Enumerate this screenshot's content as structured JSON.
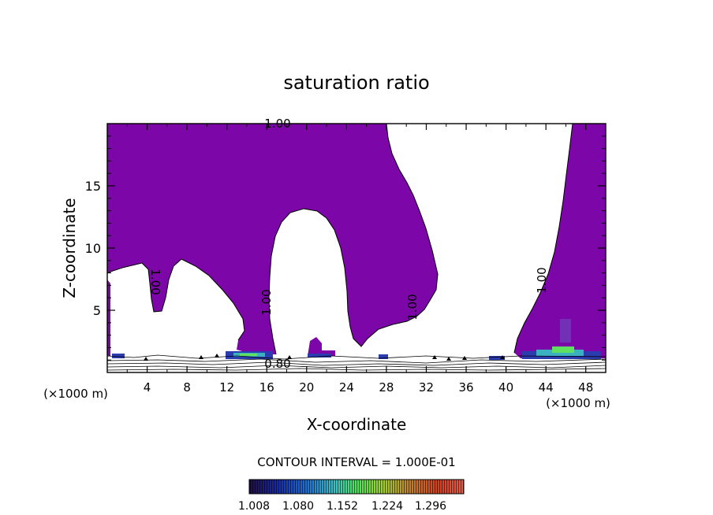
{
  "chart_data": {
    "type": "contour",
    "title": "saturation ratio",
    "xlabel": "X-coordinate",
    "ylabel": "Z-coordinate",
    "x_unit": "(×1000 m)",
    "xlim": [
      0,
      50
    ],
    "ylim": [
      0,
      20
    ],
    "x_ticks": [
      4,
      8,
      12,
      16,
      20,
      24,
      28,
      32,
      36,
      40,
      44,
      48
    ],
    "y_ticks": [
      5,
      10,
      15
    ],
    "contour_labels": [
      "1.00",
      "1.00",
      "1.00",
      "1.00",
      "1.00",
      "1.00",
      "0.80"
    ],
    "contour_interval_text": "CONTOUR INTERVAL = 1.000E-01",
    "colorbar_ticks": [
      "1.008",
      "1.080",
      "1.152",
      "1.224",
      "1.296"
    ],
    "colors": {
      "fill": "#7d06a8",
      "colorbar_stops": [
        "#201040",
        "#1a2aa0",
        "#2070d0",
        "#40c0c0",
        "#50e060",
        "#a0d030",
        "#c08030",
        "#d04020",
        "#e06050"
      ]
    }
  }
}
